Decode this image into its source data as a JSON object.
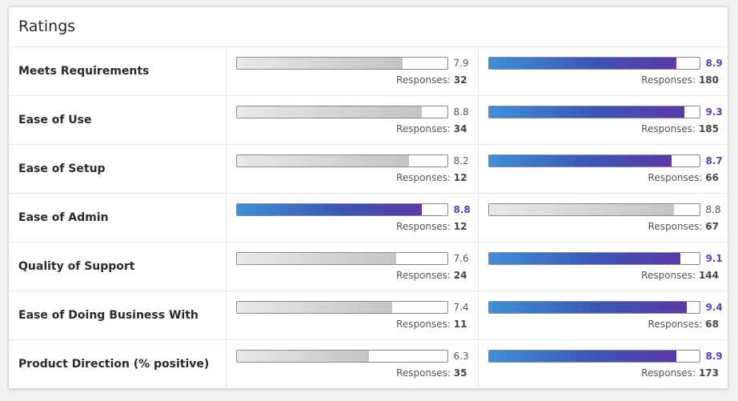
{
  "title": "Ratings",
  "responses_label": "Responses:",
  "colors": {
    "highlight": "#5b3fb0",
    "gray_bar": "#c4c4c4",
    "blue_bar_start": "#3f8fd6",
    "blue_bar_end": "#5b38a6"
  },
  "rows": [
    {
      "label": "Meets Requirements",
      "left": {
        "score": "7.9",
        "value": 7.9,
        "responses": "32",
        "highlight": false
      },
      "right": {
        "score": "8.9",
        "value": 8.9,
        "responses": "180",
        "highlight": true
      }
    },
    {
      "label": "Ease of Use",
      "left": {
        "score": "8.8",
        "value": 8.8,
        "responses": "34",
        "highlight": false
      },
      "right": {
        "score": "9.3",
        "value": 9.3,
        "responses": "185",
        "highlight": true
      }
    },
    {
      "label": "Ease of Setup",
      "left": {
        "score": "8.2",
        "value": 8.2,
        "responses": "12",
        "highlight": false
      },
      "right": {
        "score": "8.7",
        "value": 8.7,
        "responses": "66",
        "highlight": true
      }
    },
    {
      "label": "Ease of Admin",
      "left": {
        "score": "8.8",
        "value": 8.8,
        "responses": "12",
        "highlight": true
      },
      "right": {
        "score": "8.8",
        "value": 8.8,
        "responses": "67",
        "highlight": false
      }
    },
    {
      "label": "Quality of Support",
      "left": {
        "score": "7.6",
        "value": 7.6,
        "responses": "24",
        "highlight": false
      },
      "right": {
        "score": "9.1",
        "value": 9.1,
        "responses": "144",
        "highlight": true
      }
    },
    {
      "label": "Ease of Doing Business With",
      "left": {
        "score": "7.4",
        "value": 7.4,
        "responses": "11",
        "highlight": false
      },
      "right": {
        "score": "9.4",
        "value": 9.4,
        "responses": "68",
        "highlight": true
      }
    },
    {
      "label": "Product Direction (% positive)",
      "left": {
        "score": "6.3",
        "value": 6.3,
        "responses": "35",
        "highlight": false
      },
      "right": {
        "score": "8.9",
        "value": 8.9,
        "responses": "173",
        "highlight": true
      }
    }
  ]
}
